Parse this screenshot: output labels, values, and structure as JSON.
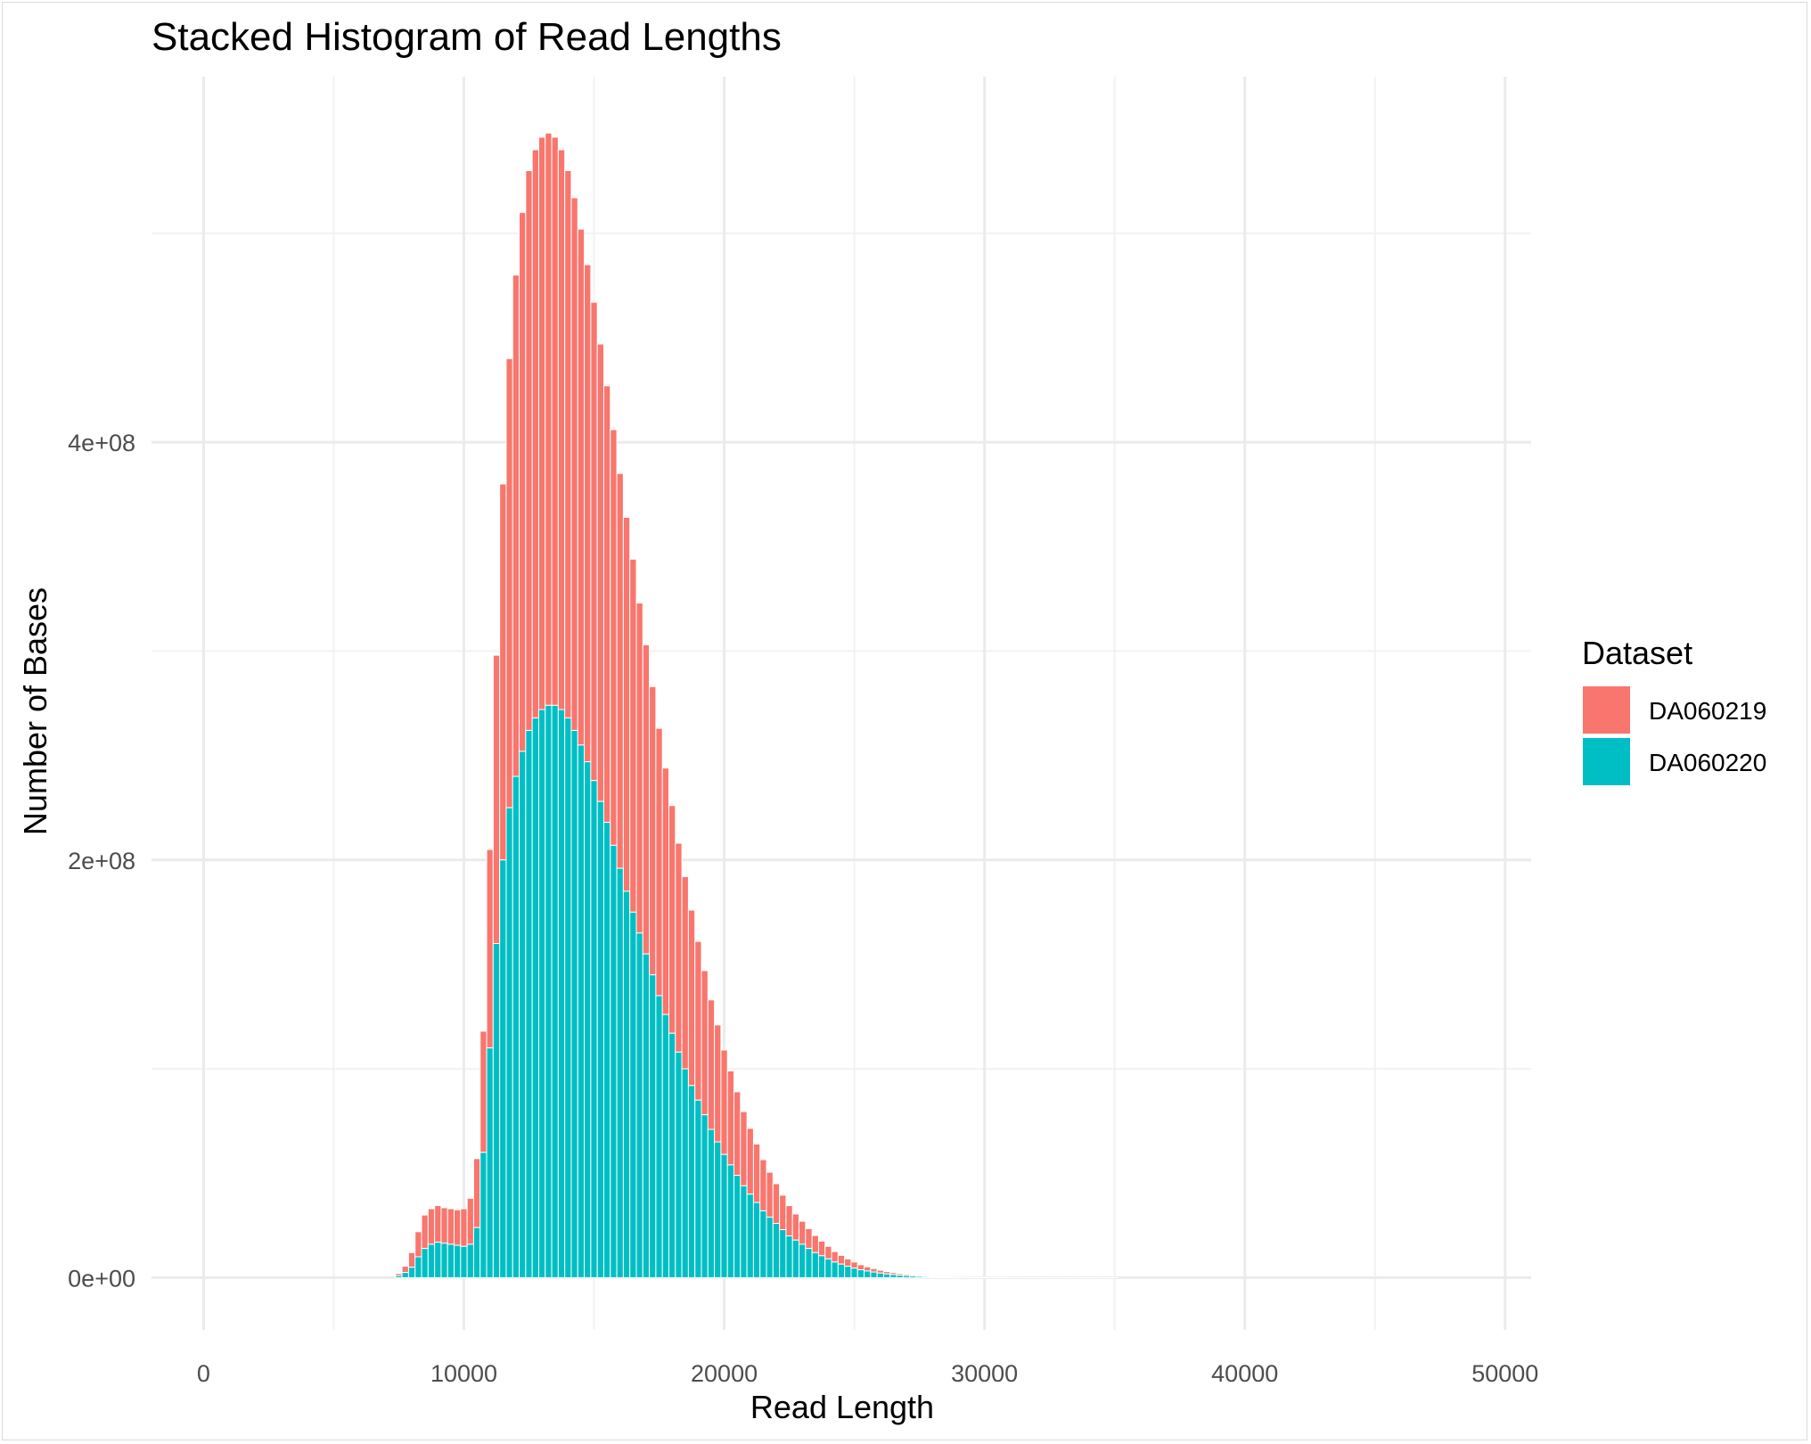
{
  "chart_data": {
    "type": "bar",
    "stacked": true,
    "title": "Stacked Histogram of Read Lengths",
    "xlabel": "Read Length",
    "ylabel": "Number of Bases",
    "xlim": [
      -2000,
      51000
    ],
    "ylim": [
      -25000000,
      575000000
    ],
    "x_ticks": [
      0,
      10000,
      20000,
      30000,
      40000,
      50000
    ],
    "x_tick_labels": [
      "0",
      "10000",
      "20000",
      "30000",
      "40000",
      "50000"
    ],
    "y_ticks": [
      0,
      200000000,
      400000000
    ],
    "y_tick_labels": [
      "0e+00",
      "2e+08",
      "4e+08"
    ],
    "grid": true,
    "legend": {
      "title": "Dataset",
      "position": "right"
    },
    "bin_width": 250,
    "x": [
      7500,
      7750,
      8000,
      8250,
      8500,
      8750,
      9000,
      9250,
      9500,
      9750,
      10000,
      10250,
      10500,
      10750,
      11000,
      11250,
      11500,
      11750,
      12000,
      12250,
      12500,
      12750,
      13000,
      13250,
      13500,
      13750,
      14000,
      14250,
      14500,
      14750,
      15000,
      15250,
      15500,
      15750,
      16000,
      16250,
      16500,
      16750,
      17000,
      17250,
      17500,
      17750,
      18000,
      18250,
      18500,
      18750,
      19000,
      19250,
      19500,
      19750,
      20000,
      20250,
      20500,
      20750,
      21000,
      21250,
      21500,
      21750,
      22000,
      22250,
      22500,
      22750,
      23000,
      23250,
      23500,
      23750,
      24000,
      24250,
      24500,
      24750,
      25000,
      25250,
      25500,
      25750,
      26000,
      26250,
      26500,
      26750,
      27000,
      27250,
      27500,
      27750,
      28000,
      28250,
      28500,
      28750,
      29000,
      29250,
      29500,
      29750,
      30000,
      30250,
      30500,
      30750,
      31000,
      31250,
      31500,
      31750,
      32000,
      32250,
      32500,
      32750,
      33000,
      33250,
      33500,
      33750,
      34000,
      34250,
      34500,
      34750,
      35000
    ],
    "series": [
      {
        "name": "DA060220",
        "color": "#00BFC4",
        "values": [
          1000000,
          2500000,
          5000000,
          10000000,
          14000000,
          16000000,
          17000000,
          16500000,
          16000000,
          15500000,
          15000000,
          16000000,
          24000000,
          60000000,
          110000000,
          160000000,
          200000000,
          225000000,
          240000000,
          252000000,
          262000000,
          268000000,
          272000000,
          274000000,
          274000000,
          272000000,
          268000000,
          262000000,
          255000000,
          247000000,
          238000000,
          228000000,
          218000000,
          207000000,
          196000000,
          185000000,
          175000000,
          165000000,
          155000000,
          145000000,
          135000000,
          126000000,
          117000000,
          108000000,
          100000000,
          92000000,
          85000000,
          78000000,
          71000000,
          65000000,
          59000000,
          54000000,
          49000000,
          44000000,
          40000000,
          36000000,
          32000000,
          29000000,
          26000000,
          23000000,
          20000000,
          18000000,
          16000000,
          14000000,
          12000000,
          10500000,
          9000000,
          7500000,
          6500000,
          5500000,
          4600000,
          3800000,
          3200000,
          2700000,
          2200000,
          1800000,
          1500000,
          1200000,
          1000000,
          800000,
          650000,
          500000,
          400000,
          320000,
          260000,
          200000,
          160000,
          130000,
          100000,
          80000,
          60000,
          50000,
          40000,
          30000,
          25000,
          20000,
          15000,
          12000,
          10000,
          8000,
          6000,
          5000,
          4000,
          3000,
          2500,
          2000,
          1500,
          1000,
          800,
          500,
          300
        ]
      },
      {
        "name": "DA060219",
        "color": "#F8766D",
        "values": [
          1000000,
          3000000,
          7000000,
          12000000,
          16000000,
          17000000,
          17500000,
          17000000,
          17000000,
          17000000,
          18000000,
          22000000,
          33000000,
          58000000,
          95000000,
          138000000,
          180000000,
          215000000,
          240000000,
          258000000,
          268000000,
          272000000,
          274000000,
          274000000,
          272000000,
          268000000,
          262000000,
          255000000,
          247000000,
          238000000,
          229000000,
          219000000,
          209000000,
          199000000,
          189000000,
          179000000,
          169000000,
          158000000,
          148000000,
          138000000,
          128000000,
          118000000,
          109000000,
          100000000,
          92000000,
          84000000,
          76000000,
          69000000,
          62000000,
          56000000,
          50000000,
          45000000,
          40000000,
          35500000,
          31500000,
          28000000,
          24500000,
          21500000,
          19000000,
          16500000,
          14500000,
          12500000,
          11000000,
          9500000,
          8200000,
          7000000,
          6000000,
          5000000,
          4200000,
          3500000,
          2900000,
          2400000,
          2000000,
          1650000,
          1350000,
          1100000,
          900000,
          720000,
          580000,
          460000,
          370000,
          290000,
          230000,
          180000,
          140000,
          110000,
          90000,
          70000,
          55000,
          45000,
          35000,
          28000,
          22000,
          17000,
          14000,
          11000,
          9000,
          7000,
          5500,
          4500,
          3500,
          2800,
          2200,
          1800,
          1400,
          1100,
          900,
          700,
          500,
          400,
          300
        ]
      }
    ]
  }
}
